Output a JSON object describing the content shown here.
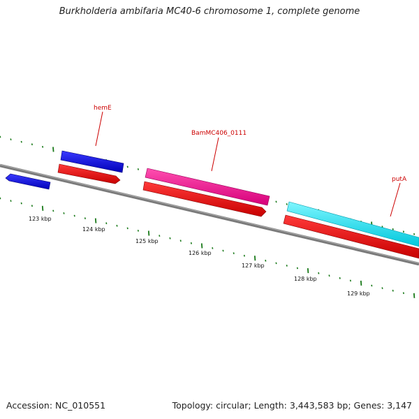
{
  "title": "Burkholderia ambifaria MC40-6 chromosome 1, complete genome",
  "footer": {
    "accession": "Accession: NC_010551",
    "topology": "Topology: circular; Length: 3,443,583 bp; Genes: 3,147"
  },
  "colors": {
    "backbone": "#808080",
    "tick": "#1a7a1a",
    "gene_label": "#cc0000"
  },
  "scale_labels": [
    "123 kbp",
    "124 kbp",
    "125 kbp",
    "126 kbp",
    "127 kbp",
    "128 kbp",
    "129 kbp"
  ],
  "gene_labels": {
    "hemE": "hemE",
    "bam": "BamMC406_0111",
    "putA": "putA"
  }
}
